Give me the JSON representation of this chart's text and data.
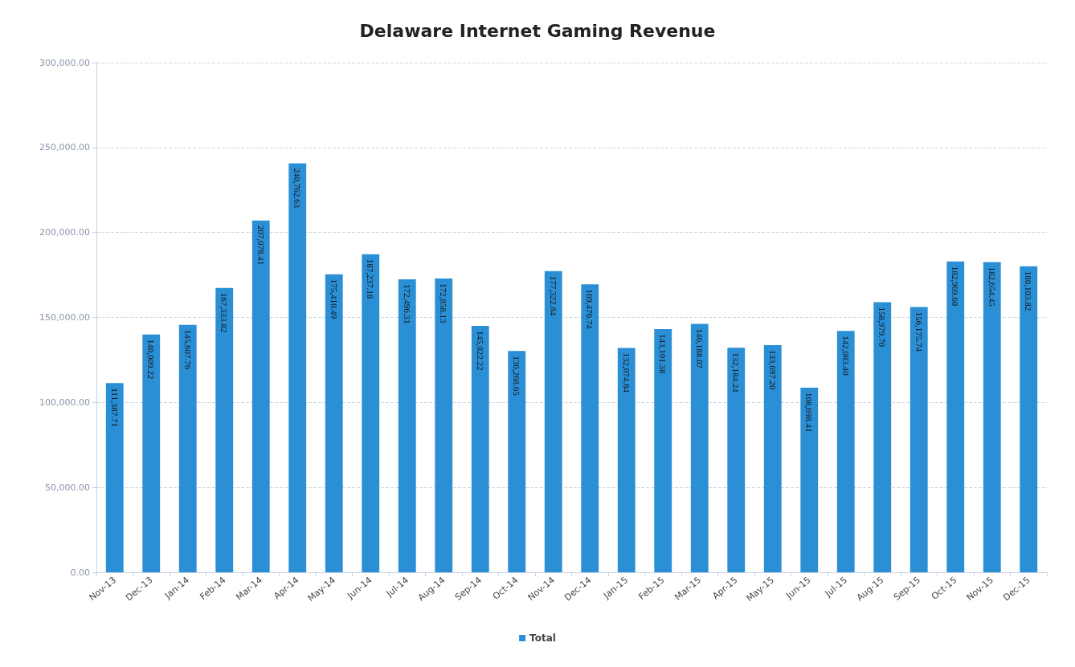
{
  "chart_data": {
    "type": "bar",
    "title": "Delaware Internet Gaming Revenue",
    "categories": [
      "Nov-13",
      "Dec-13",
      "Jan-14",
      "Feb-14",
      "Mar-14",
      "Apr-14",
      "May-14",
      "Jun-14",
      "Jul-14",
      "Aug-14",
      "Sep-14",
      "Oct-14",
      "Nov-14",
      "Dec-14",
      "Jan-15",
      "Feb-15",
      "Mar-15",
      "Apr-15",
      "May-15",
      "Jun-15",
      "Jul-15",
      "Aug-15",
      "Sep-15",
      "Oct-15",
      "Nov-15",
      "Dec-15"
    ],
    "series": [
      {
        "name": "Total",
        "color": "#2b8fd6",
        "values": [
          111387.71,
          140009.22,
          145607.76,
          167333.82,
          207078.41,
          240762.63,
          175410.49,
          187237.18,
          172496.31,
          172858.13,
          145022.22,
          130268.65,
          177322.84,
          169476.74,
          132074.84,
          143101.38,
          146188.07,
          132184.24,
          133697.2,
          108698.41,
          142083.4,
          158979.7,
          156175.74,
          182969.6,
          182654.45,
          180103.82
        ],
        "value_labels": [
          "111,387.71",
          "140,009.22",
          "145,607.76",
          "167,333.82",
          "207,078.41",
          "240,762.63",
          "175,410.49",
          "187,237.18",
          "172,496.31",
          "172,858.13",
          "145,022.22",
          "130,268.65",
          "177,322.84",
          "169,476.74",
          "132,074.84",
          "143,101.38",
          "146,188.07",
          "132,184.24",
          "133,697.20",
          "108,698.41",
          "142,083.40",
          "158,979.70",
          "156,175.74",
          "182,969.60",
          "182,654.45",
          "180,103.82"
        ]
      }
    ],
    "ylim": [
      0,
      300000
    ],
    "yticks": [
      {
        "value": 0,
        "label": "0.00"
      },
      {
        "value": 50000,
        "label": "50,000.00"
      },
      {
        "value": 100000,
        "label": "100,000.00"
      },
      {
        "value": 150000,
        "label": "150,000.00"
      },
      {
        "value": 200000,
        "label": "200,000.00"
      },
      {
        "value": 250000,
        "label": "250,000.00"
      },
      {
        "value": 300000,
        "label": "300,000.00"
      }
    ],
    "grid": "y",
    "legend": "bottom"
  }
}
